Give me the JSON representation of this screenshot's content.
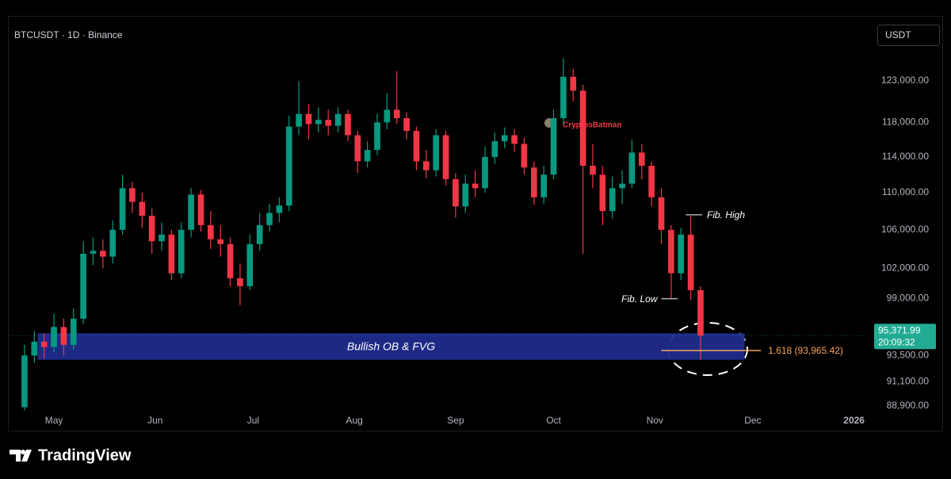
{
  "header": {
    "symbol": "BTCUSDT · 1D · Binance",
    "currency": "USDT"
  },
  "chart_data": {
    "type": "candlestick",
    "x": [
      -9,
      -6,
      -3,
      0,
      3,
      6,
      9,
      12,
      15,
      18,
      21,
      24,
      27,
      30,
      33,
      36,
      39,
      42,
      45,
      48,
      51,
      54,
      57,
      60,
      63,
      66,
      69,
      72,
      75,
      78,
      81,
      84,
      87,
      90,
      93,
      96,
      99,
      102,
      105,
      108,
      111,
      114,
      117,
      120,
      123,
      126,
      129,
      132,
      135,
      138,
      141,
      144,
      147,
      150,
      153,
      156,
      159,
      162,
      165,
      168,
      171,
      174,
      177,
      180,
      183,
      186,
      189,
      192,
      195,
      198
    ],
    "open": [
      88800,
      93500,
      94800,
      94300,
      96200,
      94500,
      97000,
      103500,
      103800,
      103200,
      106000,
      110500,
      109000,
      107500,
      104800,
      105500,
      101500,
      106000,
      109800,
      106500,
      105000,
      104500,
      101000,
      100200,
      104500,
      106500,
      107800,
      108600,
      117500,
      119000,
      117800,
      118300,
      117600,
      119000,
      116500,
      113500,
      114800,
      118000,
      119500,
      118500,
      117000,
      113500,
      112500,
      116500,
      111500,
      108500,
      111000,
      110500,
      114000,
      115800,
      116500,
      115500,
      112800,
      109500,
      112000,
      118500,
      123500,
      121800,
      113000,
      112000,
      108000,
      110500,
      111000,
      114500,
      113000,
      109500,
      106000,
      101500,
      105500,
      99800
    ],
    "high": [
      94500,
      95800,
      95600,
      97500,
      97000,
      98000,
      104800,
      105200,
      105000,
      107000,
      112000,
      111200,
      110000,
      108300,
      106800,
      106000,
      106800,
      110500,
      110300,
      108000,
      106500,
      105200,
      102500,
      105500,
      107800,
      108800,
      109500,
      118800,
      123000,
      120200,
      119800,
      119500,
      119800,
      119500,
      117000,
      115800,
      119000,
      121500,
      124200,
      119200,
      117500,
      114800,
      117200,
      117000,
      112200,
      112000,
      112500,
      115200,
      116800,
      117400,
      117200,
      116200,
      113500,
      113000,
      119500,
      125800,
      124500,
      122500,
      115500,
      113000,
      111800,
      112500,
      116000,
      115500,
      113500,
      110500,
      106500,
      106200,
      107500,
      100200
    ],
    "low": [
      88500,
      92800,
      93200,
      93800,
      93500,
      94000,
      96500,
      102300,
      102000,
      102500,
      105500,
      107800,
      106200,
      103500,
      103800,
      100800,
      101000,
      105200,
      105800,
      104000,
      103200,
      100200,
      98300,
      99800,
      103800,
      105800,
      106800,
      108000,
      116500,
      116000,
      116800,
      116500,
      116800,
      115800,
      112200,
      112800,
      114200,
      117200,
      117800,
      116000,
      112500,
      111600,
      111800,
      110800,
      107300,
      107800,
      109500,
      110000,
      113200,
      115000,
      114600,
      112000,
      108700,
      108800,
      111500,
      117800,
      120500,
      103500,
      110500,
      106500,
      107200,
      108800,
      110500,
      111500,
      108500,
      104500,
      99000,
      100800,
      98800,
      93100
    ],
    "close": [
      93500,
      94800,
      94300,
      96200,
      94500,
      97000,
      103500,
      103800,
      103200,
      106000,
      110500,
      109000,
      107500,
      104800,
      105500,
      101500,
      106000,
      109800,
      106500,
      105000,
      104500,
      101000,
      100200,
      104500,
      106500,
      107800,
      108600,
      117500,
      119000,
      117800,
      118300,
      117600,
      119000,
      116500,
      113500,
      114800,
      118000,
      119500,
      118500,
      117000,
      113500,
      112500,
      116500,
      111500,
      108500,
      111000,
      110500,
      114000,
      115800,
      116500,
      115500,
      112800,
      109500,
      112000,
      118500,
      123500,
      121800,
      113000,
      112000,
      108000,
      110500,
      111000,
      114500,
      113000,
      109500,
      106000,
      101500,
      105500,
      99800,
      95371.99
    ],
    "up_color": "#089981",
    "down_color": "#f23645",
    "xlim": [
      -13.6,
      248
    ],
    "xticks": [
      {
        "value": 0,
        "label": "May"
      },
      {
        "value": 31,
        "label": "Jun"
      },
      {
        "value": 61,
        "label": "Jul"
      },
      {
        "value": 92,
        "label": "Aug"
      },
      {
        "value": 123,
        "label": "Sep"
      },
      {
        "value": 153,
        "label": "Oct"
      },
      {
        "value": 184,
        "label": "Nov"
      },
      {
        "value": 214,
        "label": "Dec"
      },
      {
        "value": 245,
        "label": "2026"
      }
    ],
    "ylim": [
      88340,
      127150
    ],
    "log_scale": true,
    "yticks": [
      {
        "value": 88900,
        "label": "88,900.00"
      },
      {
        "value": 91100,
        "label": "91,100.00"
      },
      {
        "value": 93500,
        "label": "93,500.00"
      },
      {
        "value": 96000,
        "label": "96,000.00"
      },
      {
        "value": 99000,
        "label": "99,000.00"
      },
      {
        "value": 102000,
        "label": "102,000.00"
      },
      {
        "value": 106000,
        "label": "106,000.00"
      },
      {
        "value": 110000,
        "label": "110,000.00"
      },
      {
        "value": 114000,
        "label": "114,000.00"
      },
      {
        "value": 118000,
        "label": "118,000.00"
      },
      {
        "value": 123000,
        "label": "123,000.00"
      }
    ],
    "last_price": {
      "value": 95371.99,
      "label": "95,371.99",
      "timer": "20:09:32",
      "color": "#22ab94"
    },
    "zone": {
      "label": "Bullish OB & FVG",
      "top": 95600,
      "bottom": 93100,
      "x_range": [
        -5,
        211.5
      ],
      "color": "#1f2b8c"
    },
    "fib_extension": {
      "value": 93965.42,
      "label": "1.618 (93,965.42)",
      "x_range": [
        186,
        216.5
      ],
      "color": "#f7a35c"
    },
    "annotations": [
      {
        "label": "Fib. High",
        "value": 107600,
        "x_range": [
          193.5,
          198.5
        ]
      },
      {
        "label": "Fib. Low",
        "value": 98950,
        "x_range": [
          186,
          191
        ]
      }
    ],
    "watermark": "CryptosBatman"
  },
  "footer": {
    "brand": "TradingView"
  }
}
